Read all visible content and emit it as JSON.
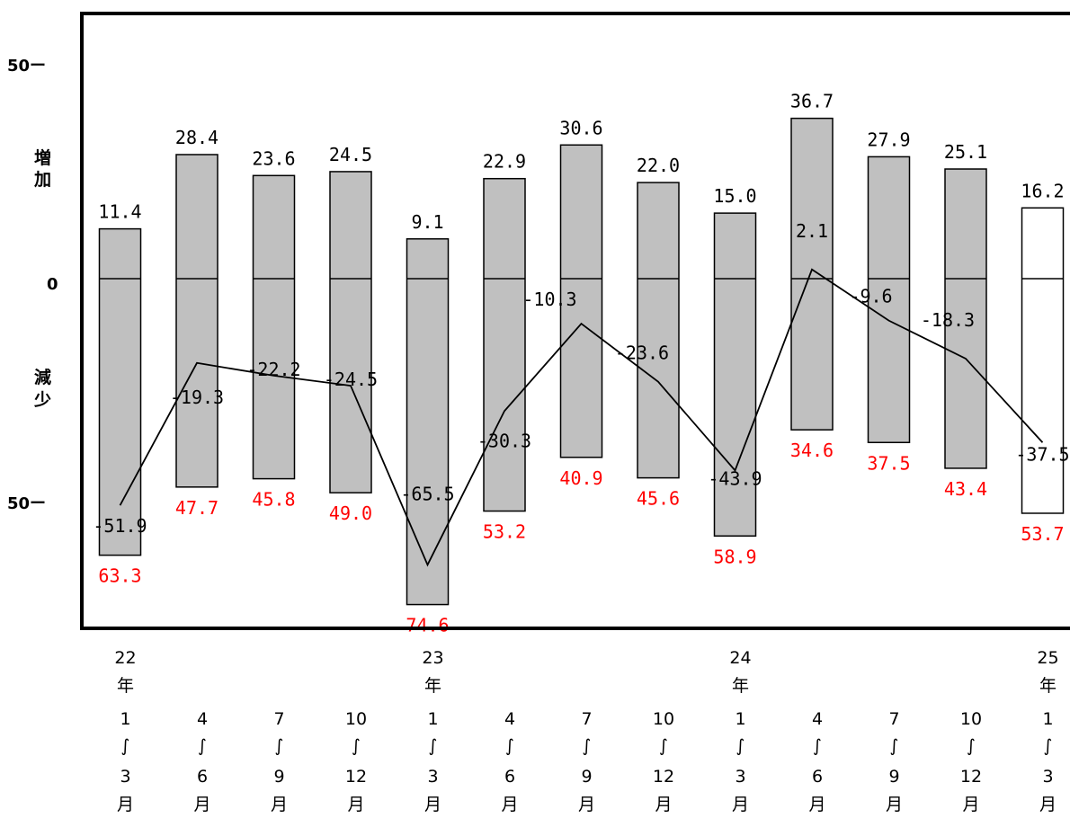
{
  "chart_data": {
    "type": "bar",
    "y_axis": {
      "ticks": [
        {
          "value": 50,
          "label": "50ー"
        },
        {
          "value": 0,
          "label": "0"
        },
        {
          "value": -50,
          "label": "50ー"
        }
      ],
      "ylim": [
        -80,
        61
      ],
      "grid_step": 10,
      "label_increase": [
        "増",
        "加"
      ],
      "label_decrease": [
        "減",
        "少"
      ]
    },
    "categories": [
      {
        "year": "22",
        "nen": "年",
        "from": "1",
        "tilde": "∫",
        "to": "3",
        "tsuki": "月"
      },
      {
        "year": "",
        "nen": "",
        "from": "4",
        "tilde": "∫",
        "to": "6",
        "tsuki": "月"
      },
      {
        "year": "",
        "nen": "",
        "from": "7",
        "tilde": "∫",
        "to": "9",
        "tsuki": "月"
      },
      {
        "year": "",
        "nen": "",
        "from": "10",
        "tilde": "∫",
        "to": "12",
        "tsuki": "月"
      },
      {
        "year": "23",
        "nen": "年",
        "from": "1",
        "tilde": "∫",
        "to": "3",
        "tsuki": "月"
      },
      {
        "year": "",
        "nen": "",
        "from": "4",
        "tilde": "∫",
        "to": "6",
        "tsuki": "月"
      },
      {
        "year": "",
        "nen": "",
        "from": "7",
        "tilde": "∫",
        "to": "9",
        "tsuki": "月"
      },
      {
        "year": "",
        "nen": "",
        "from": "10",
        "tilde": "∫",
        "to": "12",
        "tsuki": "月"
      },
      {
        "year": "24",
        "nen": "年",
        "from": "1",
        "tilde": "∫",
        "to": "3",
        "tsuki": "月"
      },
      {
        "year": "",
        "nen": "",
        "from": "4",
        "tilde": "∫",
        "to": "6",
        "tsuki": "月"
      },
      {
        "year": "",
        "nen": "",
        "from": "7",
        "tilde": "∫",
        "to": "9",
        "tsuki": "月"
      },
      {
        "year": "",
        "nen": "",
        "from": "10",
        "tilde": "∫",
        "to": "12",
        "tsuki": "月"
      },
      {
        "year": "25",
        "nen": "年",
        "from": "1",
        "tilde": "∫",
        "to": "3",
        "tsuki": "月"
      }
    ],
    "series": [
      {
        "values": [
          11.4,
          28.4,
          23.6,
          24.5,
          9.1,
          22.9,
          30.6,
          22.0,
          15.0,
          36.7,
          27.9,
          25.1,
          16.2
        ],
        "labels": [
          "11.4",
          "28.4",
          "23.6",
          "24.5",
          "9.1",
          "22.9",
          "30.6",
          "22.0",
          "15.0",
          "36.7",
          "27.9",
          "25.1",
          "16.2"
        ]
      },
      {
        "values": [
          63.3,
          47.7,
          45.8,
          49.0,
          74.6,
          53.2,
          40.9,
          45.6,
          58.9,
          34.6,
          37.5,
          43.4,
          53.7
        ],
        "labels": [
          "63.3",
          "47.7",
          "45.8",
          "49.0",
          "74.6",
          "53.2",
          "40.9",
          "45.6",
          "58.9",
          "34.6",
          "37.5",
          "43.4",
          "53.7"
        ]
      },
      {
        "values": [
          -51.9,
          -19.3,
          -22.2,
          -24.5,
          -65.5,
          -30.3,
          -10.3,
          -23.6,
          -43.9,
          2.1,
          -9.6,
          -18.3,
          -37.5
        ],
        "labels": [
          "-51.9",
          "-19.3",
          "-22.2",
          "-24.5",
          "-65.5",
          "-30.3",
          "-10.3",
          "-23.6",
          "-43.9",
          "2.1",
          "-9.6",
          "-18.3",
          "-37.5"
        ]
      }
    ],
    "colors": {
      "bar_fill": "#c0c0c0",
      "bar_fill_last": "#ffffff",
      "bar_stroke": "#000000",
      "grid": "#a6a6a6",
      "decrease_label": "#ff0000",
      "line": "#000000"
    },
    "grid": true
  }
}
